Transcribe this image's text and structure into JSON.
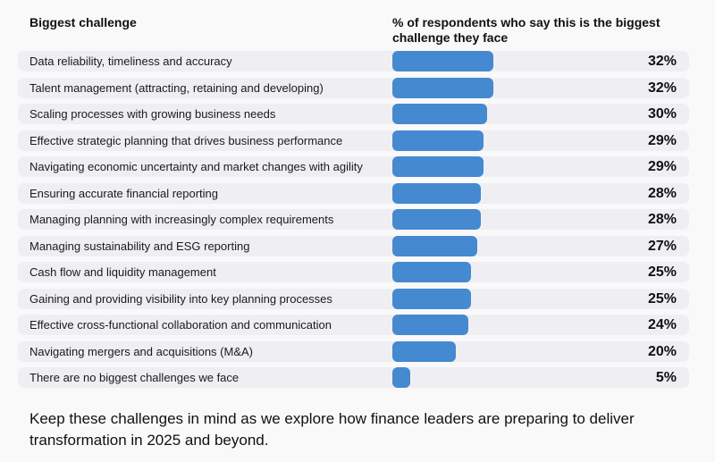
{
  "headers": {
    "challenge": "Biggest challenge",
    "percent": "% of respondents who say this is the biggest challenge they face"
  },
  "chart_data": {
    "type": "bar",
    "orientation": "horizontal",
    "bar_color": "#4589d0",
    "categories": [
      "Data reliability, timeliness and accuracy",
      "Talent management (attracting, retaining and developing)",
      "Scaling processes with growing business needs",
      "Effective strategic planning that drives business performance",
      "Navigating economic uncertainty and market changes with agility",
      "Ensuring accurate financial reporting",
      "Managing planning with increasingly complex requirements",
      "Managing sustainability and ESG reporting",
      "Cash flow and liquidity management",
      "Gaining and providing visibility into key planning processes",
      "Effective cross-functional collaboration and communication",
      "Navigating mergers and acquisitions (M&A)",
      "There are no biggest challenges we face"
    ],
    "values": [
      32,
      32,
      30,
      29,
      29,
      28,
      28,
      27,
      25,
      25,
      24,
      20,
      5
    ],
    "value_labels": [
      "32%",
      "32%",
      "30%",
      "29%",
      "29%",
      "28%",
      "28%",
      "27%",
      "25%",
      "25%",
      "24%",
      "20%",
      "5%"
    ]
  },
  "footer": "Keep these challenges in mind as we explore how finance leaders are preparing to deliver transformation in 2025 and beyond."
}
